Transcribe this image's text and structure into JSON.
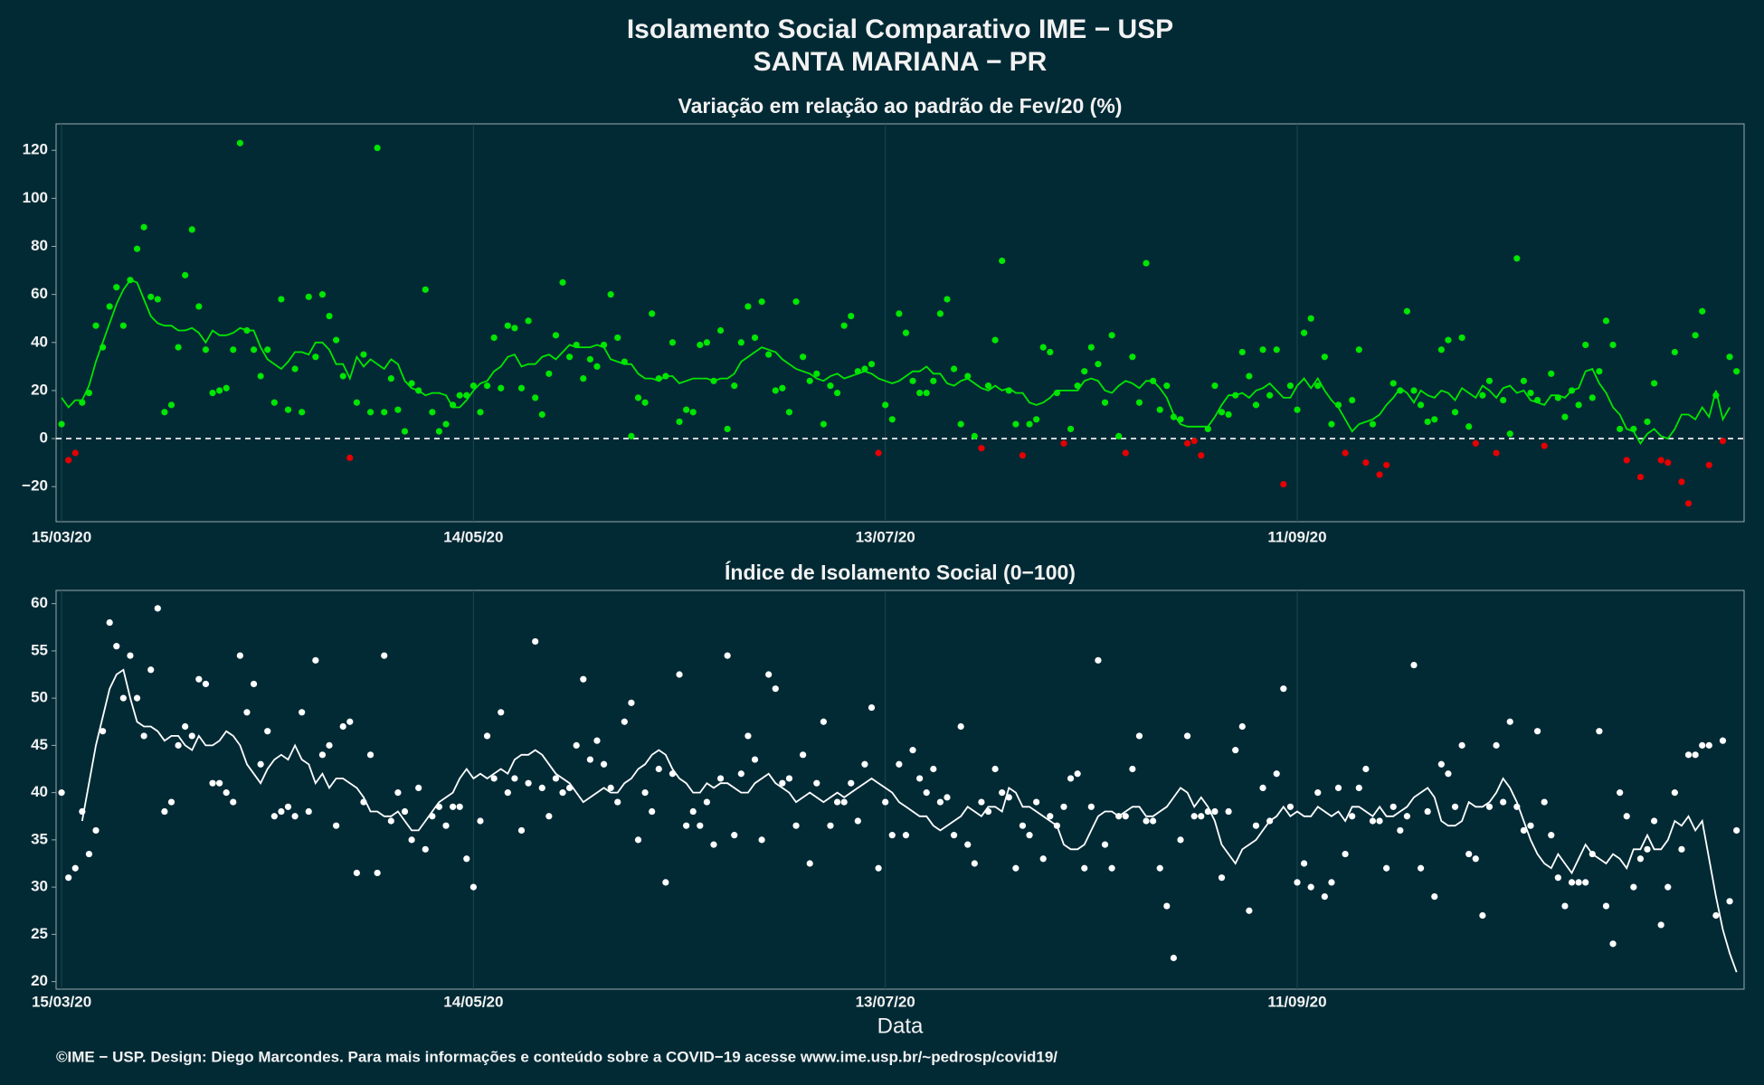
{
  "header": {
    "title": "Isolamento Social Comparativo IME − USP",
    "subtitle": "SANTA MARIANA − PR"
  },
  "chart_data": [
    {
      "type": "scatter_line",
      "title": "Variação em relação ao padrão de Fev/20 (%)",
      "xlim": [
        -0.8,
        245.1
      ],
      "xticks": [
        {
          "value": 0,
          "label": "15/03/20"
        },
        {
          "value": 60,
          "label": "14/05/20"
        },
        {
          "value": 120,
          "label": "13/07/20"
        },
        {
          "value": 180,
          "label": "11/09/20"
        }
      ],
      "ylim": [
        -34.6,
        131
      ],
      "yticks": [
        {
          "value": -20,
          "label": "−20"
        },
        0,
        20,
        40,
        60,
        80,
        100,
        120
      ],
      "hline": 0,
      "grid": true,
      "point_color_positive": "#00e600",
      "point_color_negative": "#e60000",
      "line_color": "#00e600",
      "points": [
        6,
        -9,
        -6,
        15,
        19,
        47,
        38,
        55,
        63,
        47,
        66,
        79,
        88,
        59,
        58,
        11,
        14,
        38,
        68,
        87,
        55,
        37,
        19,
        20,
        21,
        37,
        123,
        45,
        37,
        26,
        37,
        15,
        58,
        12,
        29,
        11,
        59,
        34,
        60,
        51,
        41,
        26,
        -8,
        15,
        35,
        11,
        121,
        11,
        25,
        12,
        3,
        23,
        20,
        62,
        11,
        3,
        6,
        14,
        18,
        18,
        22,
        11,
        22,
        42,
        21,
        47,
        46,
        21,
        49,
        17,
        10,
        27,
        43,
        65,
        34,
        39,
        25,
        33,
        30,
        39,
        60,
        42,
        32,
        1,
        17,
        15,
        52,
        25,
        26,
        40,
        7,
        12,
        11,
        39,
        40,
        24,
        45,
        4,
        22,
        40,
        55,
        42,
        57,
        35,
        20,
        21,
        11,
        57,
        34,
        24,
        27,
        6,
        22,
        19,
        47,
        51,
        28,
        29,
        31,
        -6,
        14,
        8,
        52,
        44,
        24,
        19,
        19,
        24,
        52,
        58,
        29,
        6,
        26,
        1,
        -4,
        22,
        41,
        74,
        20,
        6,
        -7,
        6,
        8,
        38,
        36,
        19,
        -2,
        4,
        22,
        28,
        38,
        31,
        15,
        43,
        1,
        -6,
        34,
        15,
        73,
        24,
        12,
        22,
        9,
        8,
        -2,
        -1,
        -7,
        4,
        22,
        11,
        10,
        18,
        36,
        26,
        14,
        37,
        18,
        37,
        -19,
        22,
        12,
        44,
        50,
        22,
        34,
        6,
        14,
        -6,
        16,
        37,
        -10,
        6,
        -15,
        -11,
        23,
        20,
        53,
        20,
        14,
        7,
        8,
        37,
        41,
        11,
        42,
        5,
        -2,
        18,
        24,
        -6,
        16,
        2,
        75,
        24,
        19,
        16,
        -3,
        27,
        17,
        9,
        20,
        14,
        39,
        17,
        28,
        49,
        39,
        4,
        -9,
        4,
        -16,
        7,
        23,
        -9,
        -10,
        36,
        -18,
        -27,
        43,
        53,
        -11,
        18,
        -1,
        34,
        28
      ],
      "trend": [
        17,
        13,
        16,
        16,
        22,
        32,
        40,
        48,
        56,
        62,
        66,
        65,
        58,
        51,
        48,
        47,
        47,
        45,
        45,
        46,
        44,
        40,
        45,
        43,
        43,
        44,
        46,
        45,
        45,
        38,
        33,
        31,
        29,
        32,
        36,
        36,
        35,
        40,
        40,
        37,
        31,
        31,
        25,
        34,
        30,
        33,
        31,
        29,
        33,
        31,
        24,
        21,
        20,
        18,
        19,
        19,
        18,
        13,
        13,
        16,
        20,
        23,
        24,
        28,
        30,
        34,
        35,
        30,
        31,
        31,
        34,
        35,
        33,
        36,
        39,
        38,
        38,
        38,
        39,
        38,
        33,
        32,
        31,
        31,
        27,
        25,
        25,
        24,
        26,
        26,
        23,
        24,
        25,
        25,
        25,
        24,
        25,
        25,
        27,
        32,
        34,
        36,
        38,
        37,
        36,
        33,
        31,
        29,
        28,
        27,
        25,
        24,
        26,
        27,
        25,
        26,
        27,
        28,
        27,
        25,
        24,
        23,
        24,
        26,
        28,
        28,
        30,
        27,
        27,
        23,
        22,
        24,
        25,
        23,
        21,
        20,
        22,
        20,
        21,
        19,
        19,
        15,
        14,
        15,
        17,
        20,
        20,
        20,
        20,
        24,
        25,
        24,
        20,
        19,
        22,
        24,
        23,
        21,
        24,
        24,
        21,
        17,
        10,
        6,
        5,
        5,
        5,
        5,
        9,
        14,
        18,
        18,
        19,
        17,
        20,
        21,
        23,
        20,
        17,
        17,
        22,
        25,
        21,
        25,
        20,
        16,
        13,
        8,
        3,
        6,
        7,
        8,
        10,
        14,
        17,
        21,
        19,
        15,
        20,
        18,
        17,
        20,
        19,
        16,
        21,
        19,
        17,
        22,
        20,
        17,
        21,
        22,
        19,
        20,
        16,
        15,
        14,
        18,
        18,
        17,
        20,
        21,
        28,
        29,
        23,
        19,
        13,
        10,
        4,
        3,
        -2,
        2,
        4,
        1,
        0,
        4,
        10,
        10,
        8,
        13,
        9,
        20,
        8,
        13,
        null
      ]
    },
    {
      "type": "scatter_line",
      "title": "Índice de Isolamento Social (0−100)",
      "xlabel": "Data",
      "xlim": [
        -0.8,
        245.1
      ],
      "xticks": [
        {
          "value": 0,
          "label": "15/03/20"
        },
        {
          "value": 60,
          "label": "14/05/20"
        },
        {
          "value": 120,
          "label": "13/07/20"
        },
        {
          "value": 180,
          "label": "11/09/20"
        }
      ],
      "ylim": [
        19.2,
        61.4
      ],
      "yticks": [
        20,
        25,
        30,
        35,
        40,
        45,
        50,
        55,
        60
      ],
      "grid": true,
      "point_color": "#ffffff",
      "line_color": "#ffffff",
      "points": [
        40,
        31,
        32,
        38,
        33.5,
        36,
        46.5,
        58,
        55.5,
        50,
        54.5,
        50,
        46,
        53,
        59.5,
        38,
        39,
        45,
        47,
        46,
        52,
        51.5,
        41,
        41,
        40,
        39,
        54.5,
        48.5,
        51.5,
        43,
        46.5,
        37.5,
        38,
        38.5,
        37.5,
        48.5,
        38,
        54,
        44,
        45,
        36.5,
        47,
        47.5,
        31.5,
        39,
        44,
        31.5,
        54.5,
        37,
        40,
        38,
        35,
        40.5,
        34,
        37.5,
        38.5,
        36.5,
        38.5,
        38.5,
        33,
        30,
        37,
        46,
        41.5,
        48.5,
        40,
        41.5,
        36,
        41,
        56,
        40.5,
        37.5,
        41.5,
        40,
        40.5,
        45,
        52,
        43.5,
        45.5,
        43,
        40.5,
        39,
        47.5,
        49.5,
        35,
        40,
        38,
        42.5,
        30.5,
        42,
        52.5,
        36.5,
        38,
        36.5,
        39,
        34.5,
        41.5,
        54.5,
        35.5,
        42,
        46,
        43.5,
        35,
        52.5,
        51,
        41,
        41.5,
        36.5,
        44,
        32.5,
        41,
        47.5,
        36.5,
        39,
        39,
        41,
        37,
        43,
        49,
        32,
        39,
        35.5,
        43,
        35.5,
        44.5,
        41.5,
        40,
        42.5,
        39,
        39.5,
        35.5,
        47,
        34.5,
        32.5,
        39,
        38,
        42.5,
        40,
        39.5,
        32,
        36.5,
        35.5,
        39,
        33,
        37.5,
        36.5,
        38.5,
        41.5,
        42,
        32,
        38.5,
        54,
        34.5,
        32,
        37.5,
        37.5,
        42.5,
        46,
        37,
        37,
        32,
        28,
        22.5,
        35,
        46,
        37.5,
        37.5,
        38,
        38,
        31,
        38,
        44.5,
        47,
        27.5,
        36.5,
        40.5,
        37,
        42,
        51,
        38.5,
        30.5,
        32.5,
        30,
        40,
        29,
        30.5,
        40.5,
        33.5,
        37.5,
        40.5,
        42.5,
        37,
        37,
        32,
        38.5,
        36,
        37.5,
        53.5,
        32,
        38,
        29,
        43,
        42,
        38.5,
        45,
        33.5,
        33,
        27,
        38.5,
        45,
        39,
        47.5,
        38.5,
        36,
        36.5,
        46.5,
        39,
        35.5,
        31,
        28,
        30.5,
        30.5,
        30.5,
        33.5,
        46.5,
        28,
        24,
        40,
        37.5,
        30,
        33,
        34,
        37,
        26,
        30,
        40,
        34,
        44,
        44,
        45,
        45,
        27,
        45.5,
        28.5,
        36
      ],
      "trend": [
        null,
        null,
        null,
        37,
        41,
        45,
        48,
        51,
        52.5,
        53,
        50,
        47.5,
        47,
        47,
        46.5,
        45.5,
        46,
        46,
        45,
        44.5,
        46,
        45,
        45,
        45.5,
        46.5,
        46,
        45,
        43,
        42,
        41,
        42.5,
        43.5,
        44,
        43.5,
        45,
        43.5,
        43,
        41,
        42,
        40.5,
        41.5,
        41.5,
        41,
        40.5,
        39.5,
        38,
        38,
        37.5,
        37.5,
        38,
        37,
        36,
        36,
        37,
        38,
        39,
        39.5,
        40,
        41.5,
        42.5,
        41.5,
        42,
        41.5,
        42,
        42.5,
        42,
        43.5,
        44,
        44,
        44.5,
        44,
        43,
        42,
        41.5,
        41,
        40,
        39,
        39.5,
        40,
        40.5,
        40,
        40,
        41,
        41.5,
        42.5,
        43,
        44,
        44.5,
        44,
        42.5,
        41.5,
        41,
        40,
        40,
        41,
        40.5,
        41,
        41,
        40.5,
        40,
        40,
        41,
        41.5,
        42,
        41,
        40.5,
        40,
        39,
        39.5,
        40,
        39.5,
        39,
        39.5,
        40,
        39.5,
        40,
        40.5,
        41,
        41.5,
        41,
        40.5,
        40,
        39,
        38.5,
        38,
        37.5,
        37.5,
        36.5,
        36,
        36.5,
        37,
        37.5,
        38.5,
        38,
        37.5,
        38.5,
        38.5,
        38,
        40.5,
        40,
        38.5,
        38.5,
        38,
        37.5,
        37,
        36.5,
        34.5,
        34,
        34,
        34.5,
        36,
        37.5,
        38,
        38,
        37.5,
        38,
        38.5,
        38.5,
        37.5,
        37.5,
        38,
        38.5,
        39.5,
        40.5,
        40,
        38.5,
        39.5,
        38.5,
        37,
        34.5,
        33.5,
        32.5,
        34,
        34.5,
        35,
        36,
        37,
        37.5,
        38.5,
        37.5,
        38,
        37.5,
        37.5,
        38.5,
        38,
        37.5,
        38,
        37,
        38.5,
        38.5,
        38,
        37.5,
        38.5,
        37.5,
        37.5,
        38,
        38.5,
        39.5,
        40,
        40.5,
        39.5,
        37,
        36.5,
        36.5,
        37,
        39,
        38.5,
        38.5,
        39,
        40,
        41.5,
        40.5,
        39,
        37,
        35,
        33.5,
        32.5,
        32,
        33.5,
        32.5,
        31.5,
        33,
        34.5,
        33.5,
        33,
        32.5,
        33.5,
        33,
        32,
        34,
        34,
        35.5,
        34,
        34,
        35,
        37,
        36.5,
        37.5,
        36,
        37,
        33,
        29,
        25.5,
        23,
        21
      ]
    }
  ],
  "footer": "©IME − USP. Design: Diego Marcondes. Para mais informações e conteúdo sobre a COVID−19 acesse www.ime.usp.br/~pedrosp/covid19/"
}
